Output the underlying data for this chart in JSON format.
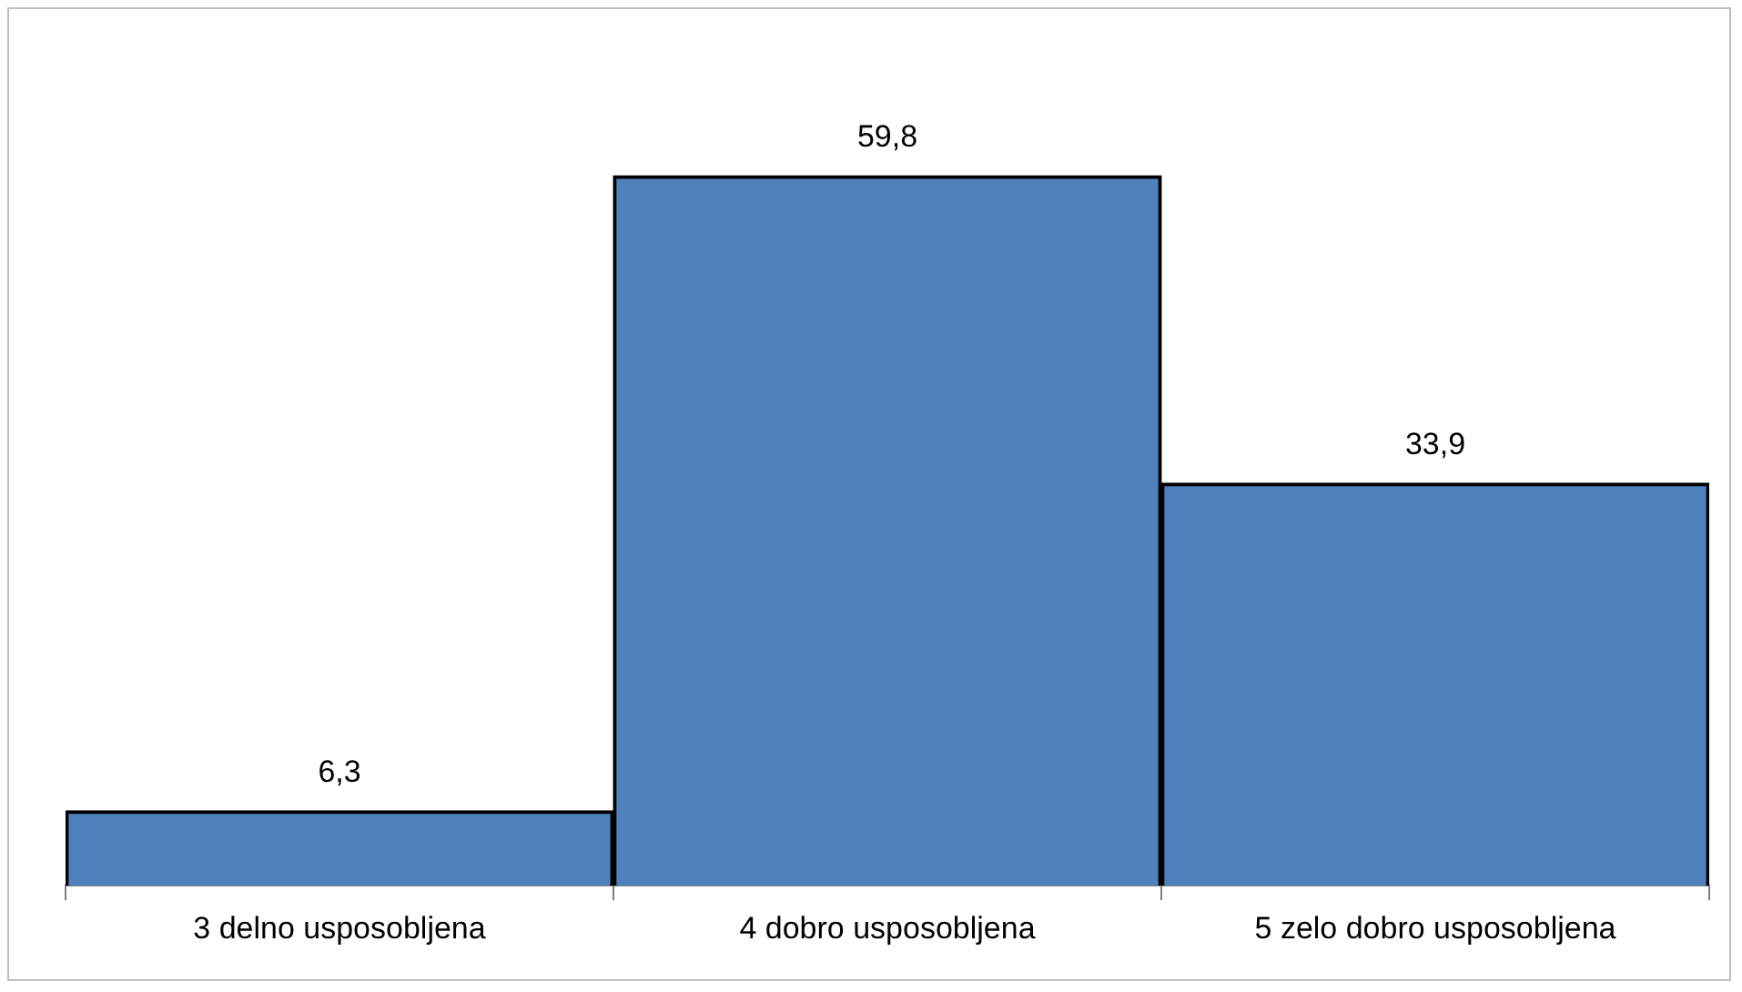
{
  "chart_data": {
    "type": "bar",
    "categories": [
      "3 delno usposobljena",
      "4 dobro usposobljena",
      "5 zelo dobro usposobljena"
    ],
    "values": [
      6.3,
      59.8,
      33.9
    ],
    "value_labels": [
      "6,3",
      "59,8",
      "33,9"
    ],
    "color": "#4f81bd",
    "grid": false,
    "legend": false
  }
}
